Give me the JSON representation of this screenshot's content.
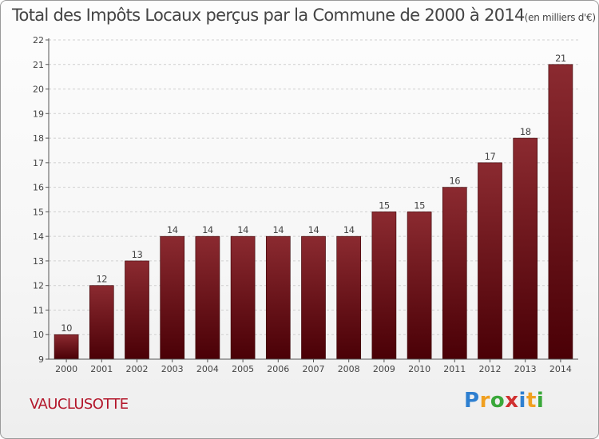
{
  "chart_data": {
    "type": "bar",
    "title": "Total des Impôts Locaux perçus par la Commune de 2000 à 2014",
    "unit": "(en milliers d'€)",
    "categories": [
      "2000",
      "2001",
      "2002",
      "2003",
      "2004",
      "2005",
      "2006",
      "2007",
      "2008",
      "2009",
      "2010",
      "2011",
      "2012",
      "2013",
      "2014"
    ],
    "values": [
      10,
      12,
      13,
      14,
      14,
      14,
      14,
      14,
      14,
      15,
      15,
      16,
      17,
      18,
      21
    ],
    "ylim": [
      9,
      22
    ],
    "yticks": [
      9,
      10,
      11,
      12,
      13,
      14,
      15,
      16,
      17,
      18,
      19,
      20,
      21,
      22
    ],
    "xlabel": "",
    "ylabel": "",
    "bar_color": "#6b1216"
  },
  "commune": "VAUCLUSOTTE",
  "logo": {
    "letters": [
      "P",
      "r",
      "o",
      "x",
      "i",
      "t",
      "i"
    ],
    "colors": [
      "#2e7fd0",
      "#f0a020",
      "#3aa83a",
      "#d03030",
      "#2e7fd0",
      "#f0a020",
      "#3aa83a"
    ]
  }
}
